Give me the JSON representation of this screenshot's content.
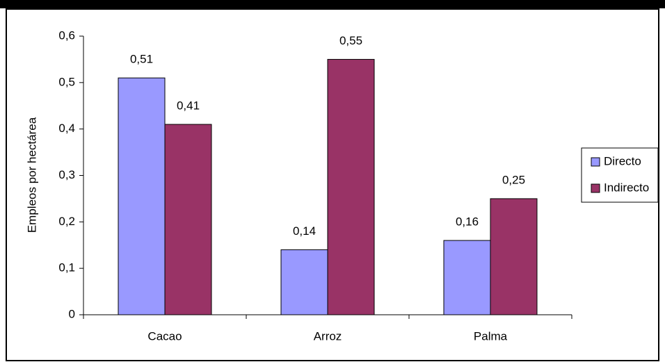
{
  "chart_data": {
    "type": "bar",
    "y_label": "Empleos por hectárea",
    "categories": [
      "Cacao",
      "Arroz",
      "Palma"
    ],
    "series": [
      {
        "name": "Directo",
        "color": "#9999ff",
        "values": [
          0.51,
          0.14,
          0.16
        ],
        "value_labels": [
          "0,51",
          "0,14",
          "0,16"
        ]
      },
      {
        "name": "Indirecto",
        "color": "#993366",
        "values": [
          0.41,
          0.55,
          0.25
        ],
        "value_labels": [
          "0,41",
          "0,55",
          "0,25"
        ]
      }
    ],
    "ylim": [
      0,
      0.6
    ],
    "yticks": [
      0,
      {
        "value": 0.1,
        "label": "0,1"
      },
      {
        "value": 0.2,
        "label": "0,2"
      },
      {
        "value": 0.3,
        "label": "0,3"
      },
      {
        "value": 0.4,
        "label": "0,4"
      },
      {
        "value": 0.5,
        "label": "0,5"
      },
      {
        "value": 0.6,
        "label": "0,6"
      }
    ],
    "legend": "right"
  }
}
